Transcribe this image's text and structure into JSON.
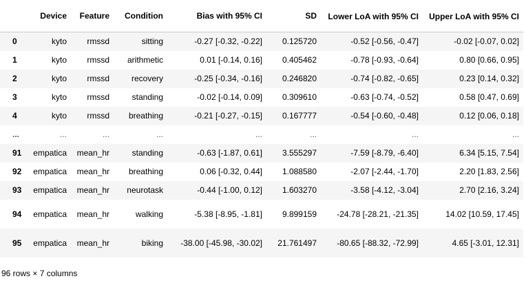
{
  "table": {
    "columns": [
      "",
      "Device",
      "Feature",
      "Condition",
      "Bias with 95% CI",
      "SD",
      "Lower LoA with 95% CI",
      "Upper LoA with 95% CI"
    ],
    "rows": [
      {
        "index": "0",
        "device": "kyto",
        "feature": "rmssd",
        "condition": "sitting",
        "bias": "-0.27 [-0.32, -0.22]",
        "sd": "0.125720",
        "lower": "-0.52 [-0.56, -0.47]",
        "upper": "-0.02 [-0.07, 0.02]"
      },
      {
        "index": "1",
        "device": "kyto",
        "feature": "rmssd",
        "condition": "arithmetic",
        "bias": "0.01 [-0.14, 0.16]",
        "sd": "0.405462",
        "lower": "-0.78 [-0.93, -0.64]",
        "upper": "0.80 [0.66, 0.95]"
      },
      {
        "index": "2",
        "device": "kyto",
        "feature": "rmssd",
        "condition": "recovery",
        "bias": "-0.25 [-0.34, -0.16]",
        "sd": "0.246820",
        "lower": "-0.74 [-0.82, -0.65]",
        "upper": "0.23 [0.14, 0.32]"
      },
      {
        "index": "3",
        "device": "kyto",
        "feature": "rmssd",
        "condition": "standing",
        "bias": "-0.02 [-0.14, 0.09]",
        "sd": "0.309610",
        "lower": "-0.63 [-0.74, -0.52]",
        "upper": "0.58 [0.47, 0.69]"
      },
      {
        "index": "4",
        "device": "kyto",
        "feature": "rmssd",
        "condition": "breathing",
        "bias": "-0.21 [-0.27, -0.15]",
        "sd": "0.167777",
        "lower": "-0.54 [-0.60, -0.48]",
        "upper": "0.12 [0.06, 0.18]"
      },
      {
        "index": "...",
        "device": "...",
        "feature": "...",
        "condition": "...",
        "bias": "...",
        "sd": "...",
        "lower": "...",
        "upper": "..."
      },
      {
        "index": "91",
        "device": "empatica",
        "feature": "mean_hr",
        "condition": "standing",
        "bias": "-0.63 [-1.87, 0.61]",
        "sd": "3.555297",
        "lower": "-7.59 [-8.79, -6.40]",
        "upper": "6.34 [5.15, 7.54]"
      },
      {
        "index": "92",
        "device": "empatica",
        "feature": "mean_hr",
        "condition": "breathing",
        "bias": "0.06 [-0.32, 0.44]",
        "sd": "1.088580",
        "lower": "-2.07 [-2.44, -1.70]",
        "upper": "2.20 [1.83, 2.56]"
      },
      {
        "index": "93",
        "device": "empatica",
        "feature": "mean_hr",
        "condition": "neurotask",
        "bias": "-0.44 [-1.00, 0.12]",
        "sd": "1.603270",
        "lower": "-3.58 [-4.12, -3.04]",
        "upper": "2.70 [2.16, 3.24]"
      },
      {
        "index": "94",
        "device": "empatica",
        "feature": "mean_hr",
        "condition": "walking",
        "bias": "-5.38 [-8.95, -1.81]",
        "sd": "9.899159",
        "lower": "-24.78 [-28.21, -21.35]",
        "upper": "14.02 [10.59, 17.45]"
      },
      {
        "index": "95",
        "device": "empatica",
        "feature": "mean_hr",
        "condition": "biking",
        "bias": "-38.00 [-45.98, -30.02]",
        "sd": "21.761497",
        "lower": "-80.65 [-88.32, -72.99]",
        "upper": "4.65 [-3.01, 12.31]"
      }
    ]
  },
  "footer": "96 rows × 7 columns"
}
